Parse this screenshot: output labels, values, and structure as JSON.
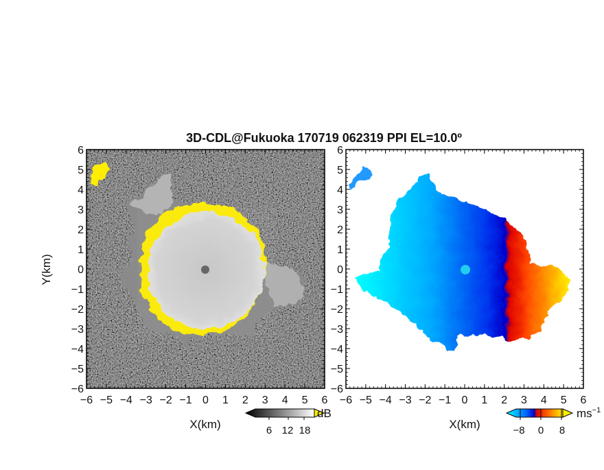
{
  "title": "3D-CDL@Fukuoka 170719 062319 PPI EL=10.0º",
  "panels": [
    {
      "name": "snr-panel",
      "xlabel": "X(km)",
      "ylabel": "Y(km)",
      "colorbar": {
        "unit": "dB",
        "ticks": [
          "6",
          "12",
          "18"
        ]
      }
    },
    {
      "name": "velocity-panel",
      "xlabel": "X(km)",
      "ylabel": "",
      "colorbar": {
        "unit": "ms",
        "unit_exp": "−1",
        "ticks": [
          "−8",
          "0",
          "8"
        ]
      }
    }
  ],
  "chart_data": [
    {
      "type": "heatmap",
      "title": "3D-CDL@Fukuoka 170719 062319 PPI EL=10.0º",
      "xlabel": "X(km)",
      "ylabel": "Y(km)",
      "xlim": [
        -6,
        6
      ],
      "ylim": [
        -6,
        6
      ],
      "x_ticks": [
        "−6",
        "−5",
        "−4",
        "−3",
        "−2",
        "−1",
        "0",
        "1",
        "2",
        "3",
        "4",
        "5",
        "6"
      ],
      "y_ticks": [
        "−6",
        "−5",
        "−4",
        "−3",
        "−2",
        "−1",
        "0",
        "1",
        "2",
        "3",
        "4",
        "5",
        "6"
      ],
      "colorbar": {
        "unit": "dB",
        "ticks": [
          6,
          12,
          18
        ],
        "colormap": "grayscale"
      },
      "features": {
        "center_gray_radius_km": 3.0,
        "yellow_rim_km": [
          3.0,
          3.6
        ],
        "noise_background": "black speckle"
      }
    },
    {
      "type": "heatmap",
      "xlabel": "X(km)",
      "xlim": [
        -6,
        6
      ],
      "ylim": [
        -6,
        6
      ],
      "x_ticks": [
        "−6",
        "−5",
        "−4",
        "−3",
        "−2",
        "−1",
        "0",
        "1",
        "2",
        "3",
        "4",
        "5",
        "6"
      ],
      "y_ticks": [
        "−6",
        "−5",
        "−4",
        "−3",
        "−2",
        "−1",
        "0",
        "1",
        "2",
        "3",
        "4",
        "5",
        "6"
      ],
      "colorbar": {
        "unit": "ms−1",
        "ticks": [
          -8,
          0,
          8
        ],
        "colormap": [
          "#00ffff",
          "#0066ff",
          "#0000cc",
          "#cc0000",
          "#ff4400",
          "#ff9900",
          "#ffee00"
        ]
      },
      "features": {
        "negative_side": "west (blue)",
        "positive_side": "east (red-yellow)",
        "max_range_km": 5.3
      }
    }
  ]
}
